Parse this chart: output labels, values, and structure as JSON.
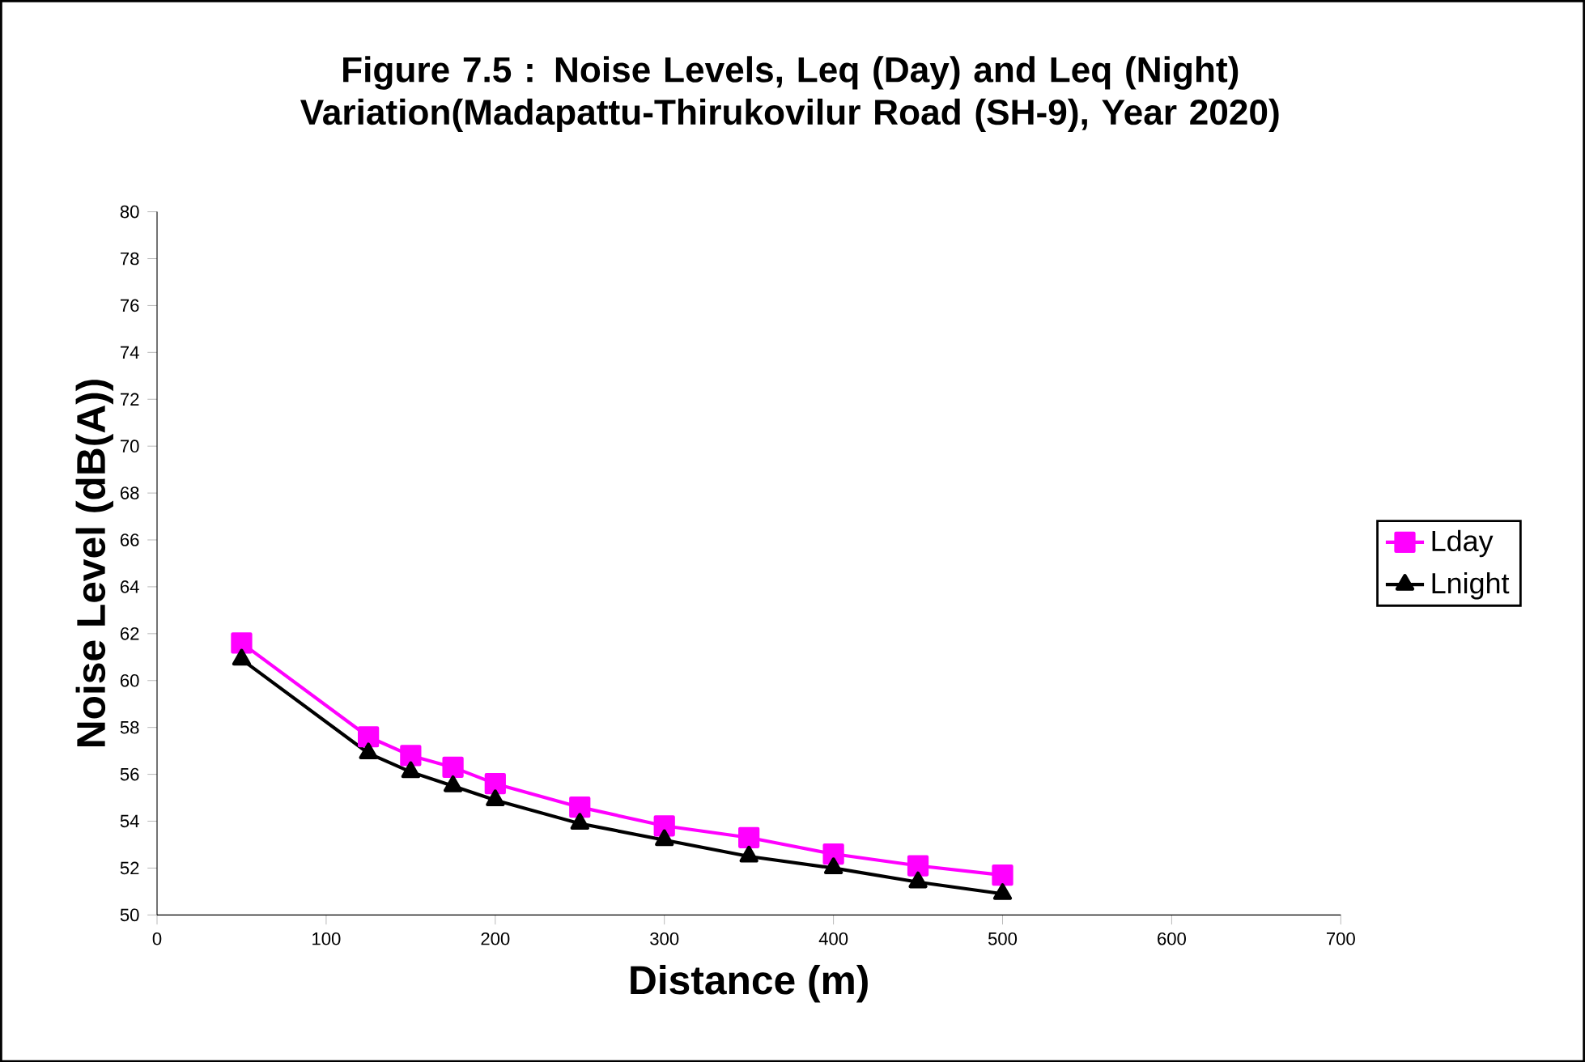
{
  "chart_data": {
    "type": "line",
    "title": "Figure 7.5 : Noise Levels, Leq (Day) and Leq (Night) Variation(Madapattu-Thirukovilur Road (SH-9), Year 2020)",
    "xlabel": "Distance (m)",
    "ylabel": "Noise Level (dB(A))",
    "x": [
      50,
      125,
      150,
      175,
      200,
      250,
      300,
      350,
      400,
      450,
      500
    ],
    "series": [
      {
        "name": "Lday",
        "color": "#ff00ff",
        "marker": "square",
        "values": [
          61.6,
          57.6,
          56.8,
          56.3,
          55.6,
          54.6,
          53.8,
          53.3,
          52.6,
          52.1,
          51.7
        ]
      },
      {
        "name": "Lnight",
        "color": "#000000",
        "marker": "triangle",
        "values": [
          60.9,
          56.9,
          56.1,
          55.5,
          54.9,
          53.9,
          53.2,
          52.5,
          52.0,
          51.4,
          50.9
        ]
      }
    ],
    "xlim": [
      0,
      700
    ],
    "xticks": [
      0,
      100,
      200,
      300,
      400,
      500,
      600,
      700
    ],
    "ylim": [
      50,
      80
    ],
    "yticks": [
      50,
      52,
      54,
      56,
      58,
      60,
      62,
      64,
      66,
      68,
      70,
      72,
      74,
      76,
      78,
      80
    ],
    "grid": false,
    "legend": "right",
    "line_style": "solid"
  }
}
